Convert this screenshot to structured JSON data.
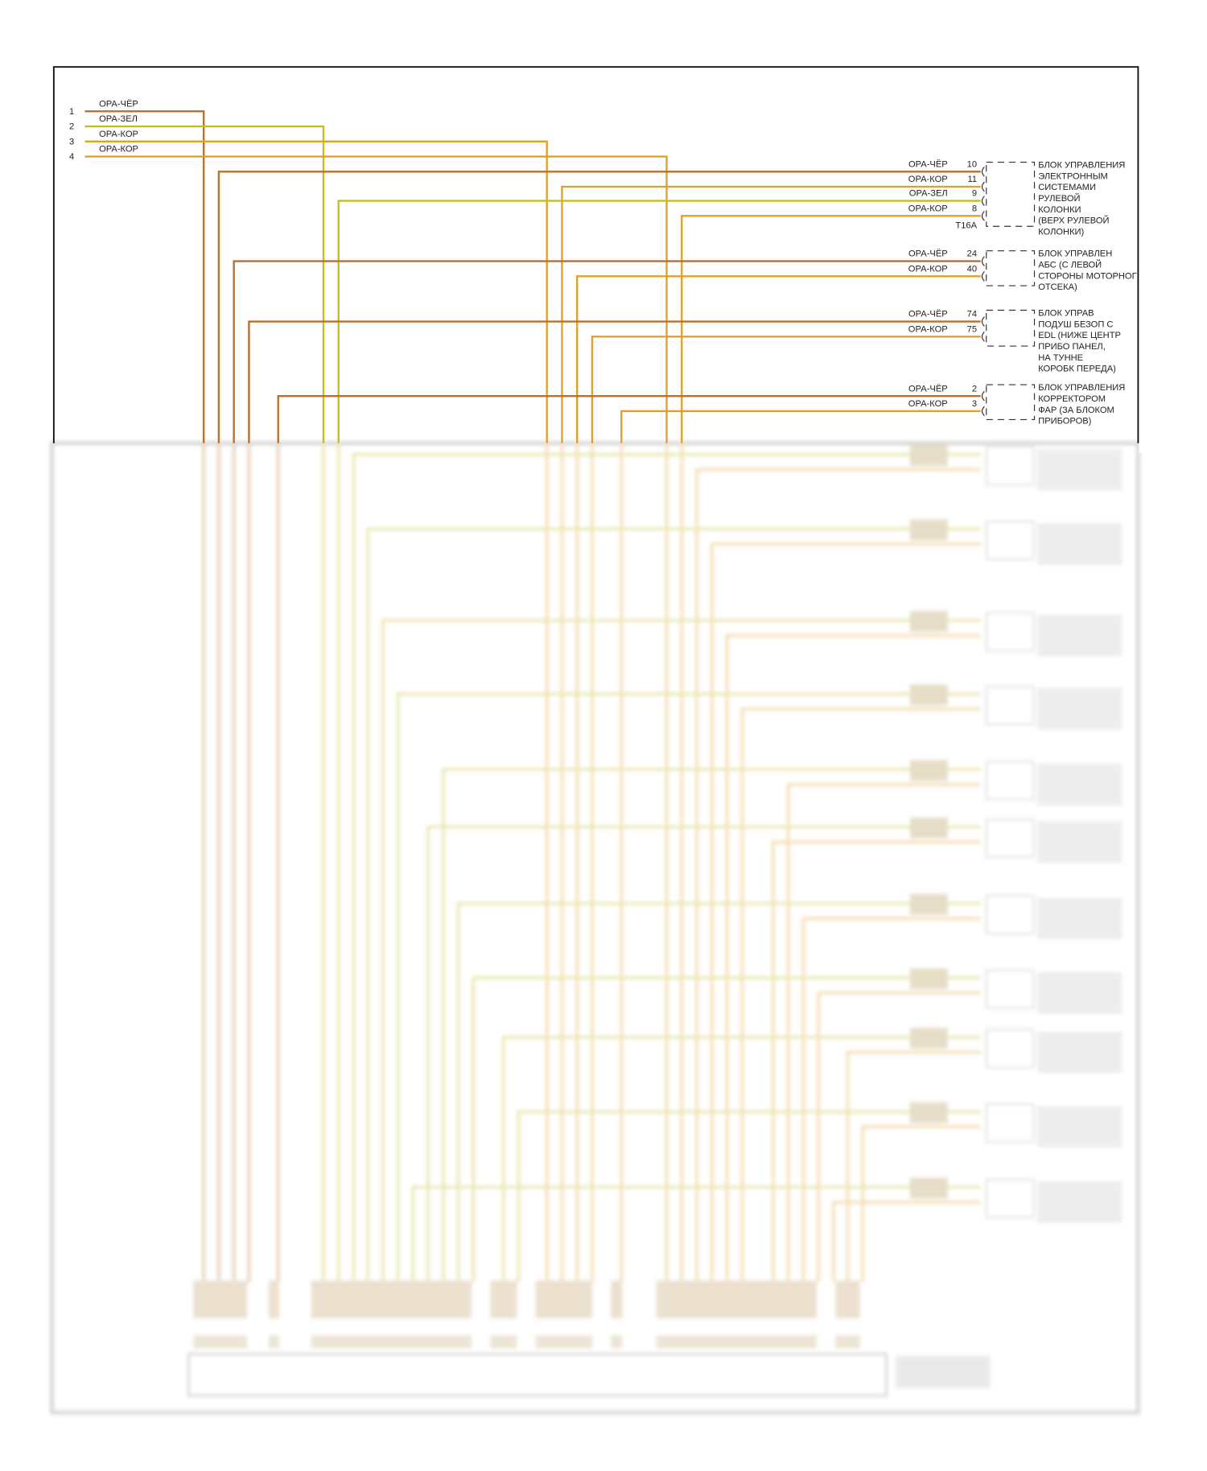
{
  "wire_colors": {
    "ОРА-ЧЁР": "#b8702a",
    "ОРА-КОР": "#e0a028",
    "ОРА-ЗЕЛ": "#c4bc24"
  },
  "left_terminals": [
    {
      "pin": "1",
      "wire": "ОРА-ЧЁР"
    },
    {
      "pin": "2",
      "wire": "ОРА-ЗЕЛ"
    },
    {
      "pin": "3",
      "wire": "ОРА-КОР"
    },
    {
      "pin": "4",
      "wire": "ОРА-КОР"
    }
  ],
  "connectors": [
    {
      "title_lines": [
        "БЛОК УПРАВЛЕНИЯ",
        "ЭЛЕКТРОННЫМ",
        "СИСТЕМАМИ",
        "РУЛЕВОЙ",
        "КОЛОНКИ",
        "(ВЕРХ РУЛЕВОЙ",
        "КОЛОНКИ)"
      ],
      "connector_id": "T16A",
      "pins": [
        {
          "pin": "10",
          "wire": "ОРА-ЧЁР"
        },
        {
          "pin": "11",
          "wire": "ОРА-КОР"
        },
        {
          "pin": "9",
          "wire": "ОРА-ЗЕЛ"
        },
        {
          "pin": "8",
          "wire": "ОРА-КОР"
        }
      ]
    },
    {
      "title_lines": [
        "БЛОК УПРАВЛЕН",
        "АБС (С ЛЕВОЙ",
        "СТОРОНЫ МОТОРНОГ",
        "ОТСЕКА)"
      ],
      "pins": [
        {
          "pin": "24",
          "wire": "ОРА-ЧЁР"
        },
        {
          "pin": "40",
          "wire": "ОРА-КОР"
        }
      ]
    },
    {
      "title_lines": [
        "БЛОК УПРАВ",
        "ПОДУШ БЕЗОП С",
        "EDL (НИЖЕ ЦЕНТР",
        "ПРИБО ПАНЕЛ,",
        "НА ТУННЕ",
        "КОРОБК ПЕРЕДА)"
      ],
      "pins": [
        {
          "pin": "74",
          "wire": "ОРА-ЧЁР"
        },
        {
          "pin": "75",
          "wire": "ОРА-КОР"
        }
      ]
    },
    {
      "title_lines": [
        "БЛОК УПРАВЛЕНИЯ",
        "КОРРЕКТОРОМ",
        "ФАР (ЗА БЛОКОМ",
        "ПРИБОРОВ)"
      ],
      "pins": [
        {
          "pin": "2",
          "wire": "ОРА-ЧЁР"
        },
        {
          "pin": "3",
          "wire": "ОРА-КОР"
        }
      ]
    }
  ]
}
